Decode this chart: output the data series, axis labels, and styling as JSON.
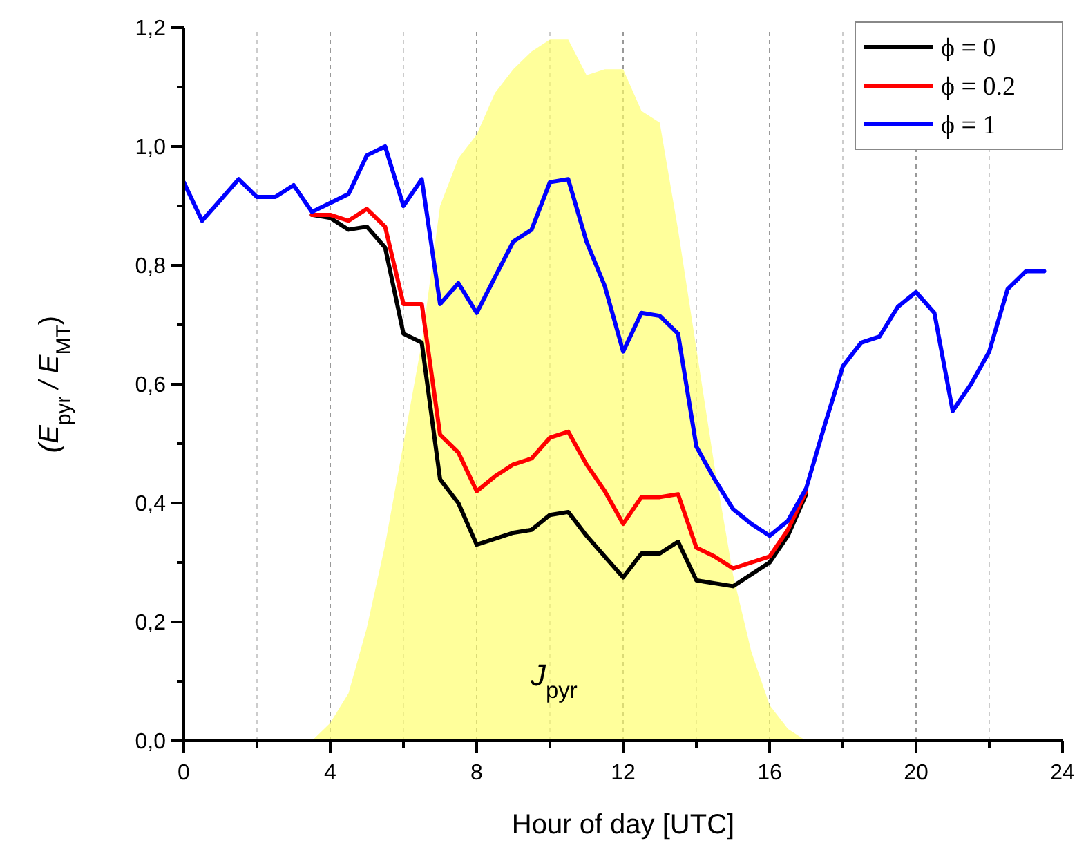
{
  "chart_data": {
    "type": "line",
    "xlabel": "Hour of day [UTC]",
    "ylabel": "(E$_{pyr}$ / E$_{MT}$)",
    "x": [
      0,
      0.5,
      1,
      1.5,
      2,
      2.5,
      3,
      3.5,
      4,
      4.5,
      5,
      5.5,
      6,
      6.5,
      7,
      7.5,
      8,
      8.5,
      9,
      9.5,
      10,
      10.5,
      11,
      11.5,
      12,
      12.5,
      13,
      13.5,
      14,
      14.5,
      15,
      15.5,
      16,
      16.5,
      17,
      17.5,
      18,
      18.5,
      19,
      19.5,
      20,
      20.5,
      21,
      21.5,
      22,
      22.5,
      23,
      23.5
    ],
    "series": [
      {
        "type": "area",
        "color": "#ffff66",
        "values": [
          0,
          0,
          0,
          0,
          0,
          0,
          0,
          0,
          0.03,
          0.08,
          0.19,
          0.33,
          0.5,
          0.67,
          0.9,
          0.98,
          1.02,
          1.09,
          1.13,
          1.16,
          1.18,
          1.18,
          1.12,
          1.13,
          1.13,
          1.06,
          1.04,
          0.86,
          0.66,
          0.46,
          0.28,
          0.15,
          0.06,
          0.02,
          0,
          0,
          0,
          0,
          0,
          0,
          0,
          0,
          0,
          0,
          0,
          0,
          0,
          0
        ]
      },
      {
        "name": "ϕ = 0",
        "color": "#000000",
        "values": [
          null,
          null,
          null,
          null,
          null,
          null,
          null,
          0.885,
          0.88,
          0.86,
          0.865,
          0.83,
          0.685,
          0.67,
          0.44,
          0.4,
          0.33,
          0.34,
          0.35,
          0.355,
          0.38,
          0.385,
          0.345,
          0.31,
          0.275,
          0.315,
          0.315,
          0.335,
          0.27,
          0.265,
          0.26,
          0.28,
          0.3,
          0.345,
          0.415,
          null,
          null,
          null,
          null,
          null,
          null,
          null,
          null,
          null,
          null,
          null,
          null,
          null
        ]
      },
      {
        "name": "ϕ = 0.2",
        "color": "#ff0000",
        "values": [
          null,
          null,
          null,
          null,
          null,
          null,
          null,
          0.885,
          0.885,
          0.875,
          0.895,
          0.865,
          0.735,
          0.735,
          0.515,
          0.485,
          0.42,
          0.445,
          0.465,
          0.475,
          0.51,
          0.52,
          0.465,
          0.42,
          0.365,
          0.41,
          0.41,
          0.415,
          0.325,
          0.31,
          0.29,
          0.3,
          0.31,
          0.355,
          0.42,
          null,
          null,
          null,
          null,
          null,
          null,
          null,
          null,
          null,
          null,
          null,
          null,
          null
        ]
      },
      {
        "name": "ϕ = 1",
        "color": "#0000ff",
        "values": [
          0.94,
          0.875,
          0.91,
          0.945,
          0.915,
          0.915,
          0.935,
          0.89,
          0.905,
          0.92,
          0.985,
          1.0,
          0.9,
          0.945,
          0.735,
          0.77,
          0.72,
          0.78,
          0.84,
          0.86,
          0.94,
          0.945,
          0.84,
          0.765,
          0.655,
          0.72,
          0.715,
          0.685,
          0.495,
          0.44,
          0.39,
          0.365,
          0.345,
          0.37,
          0.425,
          0.53,
          0.63,
          0.67,
          0.68,
          0.73,
          0.755,
          0.72,
          0.555,
          0.6,
          0.655,
          0.76,
          0.79,
          0.79
        ]
      }
    ],
    "xlim": [
      0,
      24
    ],
    "xticks": [
      0,
      {
        "value": 2,
        "label": null
      },
      4,
      {
        "value": 6,
        "label": null
      },
      8,
      {
        "value": 10,
        "label": null
      },
      12,
      {
        "value": 14,
        "label": null
      },
      16,
      {
        "value": 18,
        "label": null
      },
      20,
      {
        "value": 22,
        "label": null
      },
      24
    ],
    "ylim": [
      0,
      1.2
    ],
    "yticks": [
      {
        "value": 0,
        "label": "0,0"
      },
      {
        "value": 0.1,
        "label": null
      },
      {
        "value": 0.2,
        "label": "0,2"
      },
      {
        "value": 0.3,
        "label": null
      },
      {
        "value": 0.4,
        "label": "0,4"
      },
      {
        "value": 0.5,
        "label": null
      },
      {
        "value": 0.6,
        "label": "0,6"
      },
      {
        "value": 0.7,
        "label": null
      },
      {
        "value": 0.8,
        "label": "0,8"
      },
      {
        "value": 0.9,
        "label": null
      },
      {
        "value": 1.0,
        "label": "1,0"
      },
      {
        "value": 1.1,
        "label": null
      },
      {
        "value": 1.2,
        "label": "1,2"
      }
    ],
    "grid": "x",
    "legend": "top right",
    "line_style": "solid",
    "annotations": [
      "J$_{pyr}$"
    ]
  }
}
